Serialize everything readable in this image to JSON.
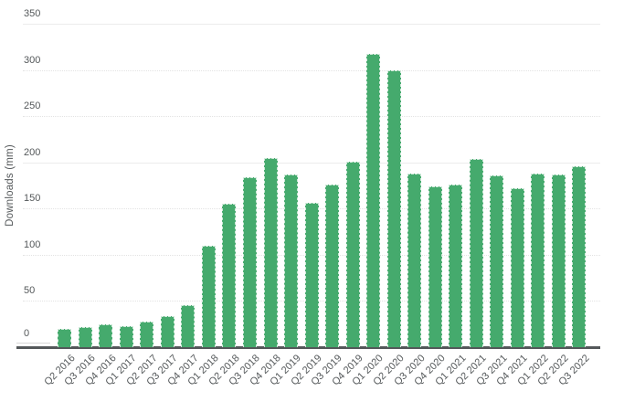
{
  "page": {
    "background": "#ffffff"
  },
  "chart_data": {
    "type": "bar",
    "title": "",
    "xlabel": "",
    "ylabel": "Downloads (mm)",
    "categories": [
      "Q2 2016",
      "Q3 2016",
      "Q4 2016",
      "Q1 2017",
      "Q2 2017",
      "Q3 2017",
      "Q4 2017",
      "Q1 2018",
      "Q2 2018",
      "Q3 2018",
      "Q4 2018",
      "Q1 2019",
      "Q2 2019",
      "Q3 2019",
      "Q4 2019",
      "Q1 2020",
      "Q2 2020",
      "Q3 2020",
      "Q4 2020",
      "Q1 2021",
      "Q2 2021",
      "Q3 2021",
      "Q4 2021",
      "Q1 2022",
      "Q2 2022",
      "Q3 2022"
    ],
    "values": [
      20,
      22,
      25,
      23,
      28,
      34,
      45,
      110,
      155,
      184,
      205,
      187,
      156,
      176,
      201,
      317,
      300,
      188,
      174,
      176,
      204,
      186,
      172,
      188,
      187,
      196
    ],
    "ylim": [
      0,
      350
    ],
    "yticks": [
      0,
      50,
      100,
      150,
      200,
      250,
      300,
      350
    ],
    "grid": true,
    "legend_position": "none",
    "x_label_rotation_deg": 45,
    "colors": {
      "bar": "#45aa6d",
      "bar_border": "rgba(255,255,255,0.75)",
      "grid_dotted": "#e3e3e3",
      "grid_solid": "#ececec",
      "axis_line": "#54585a",
      "text": "#54585a"
    },
    "solid_grid_values": [
      200,
      350
    ]
  }
}
